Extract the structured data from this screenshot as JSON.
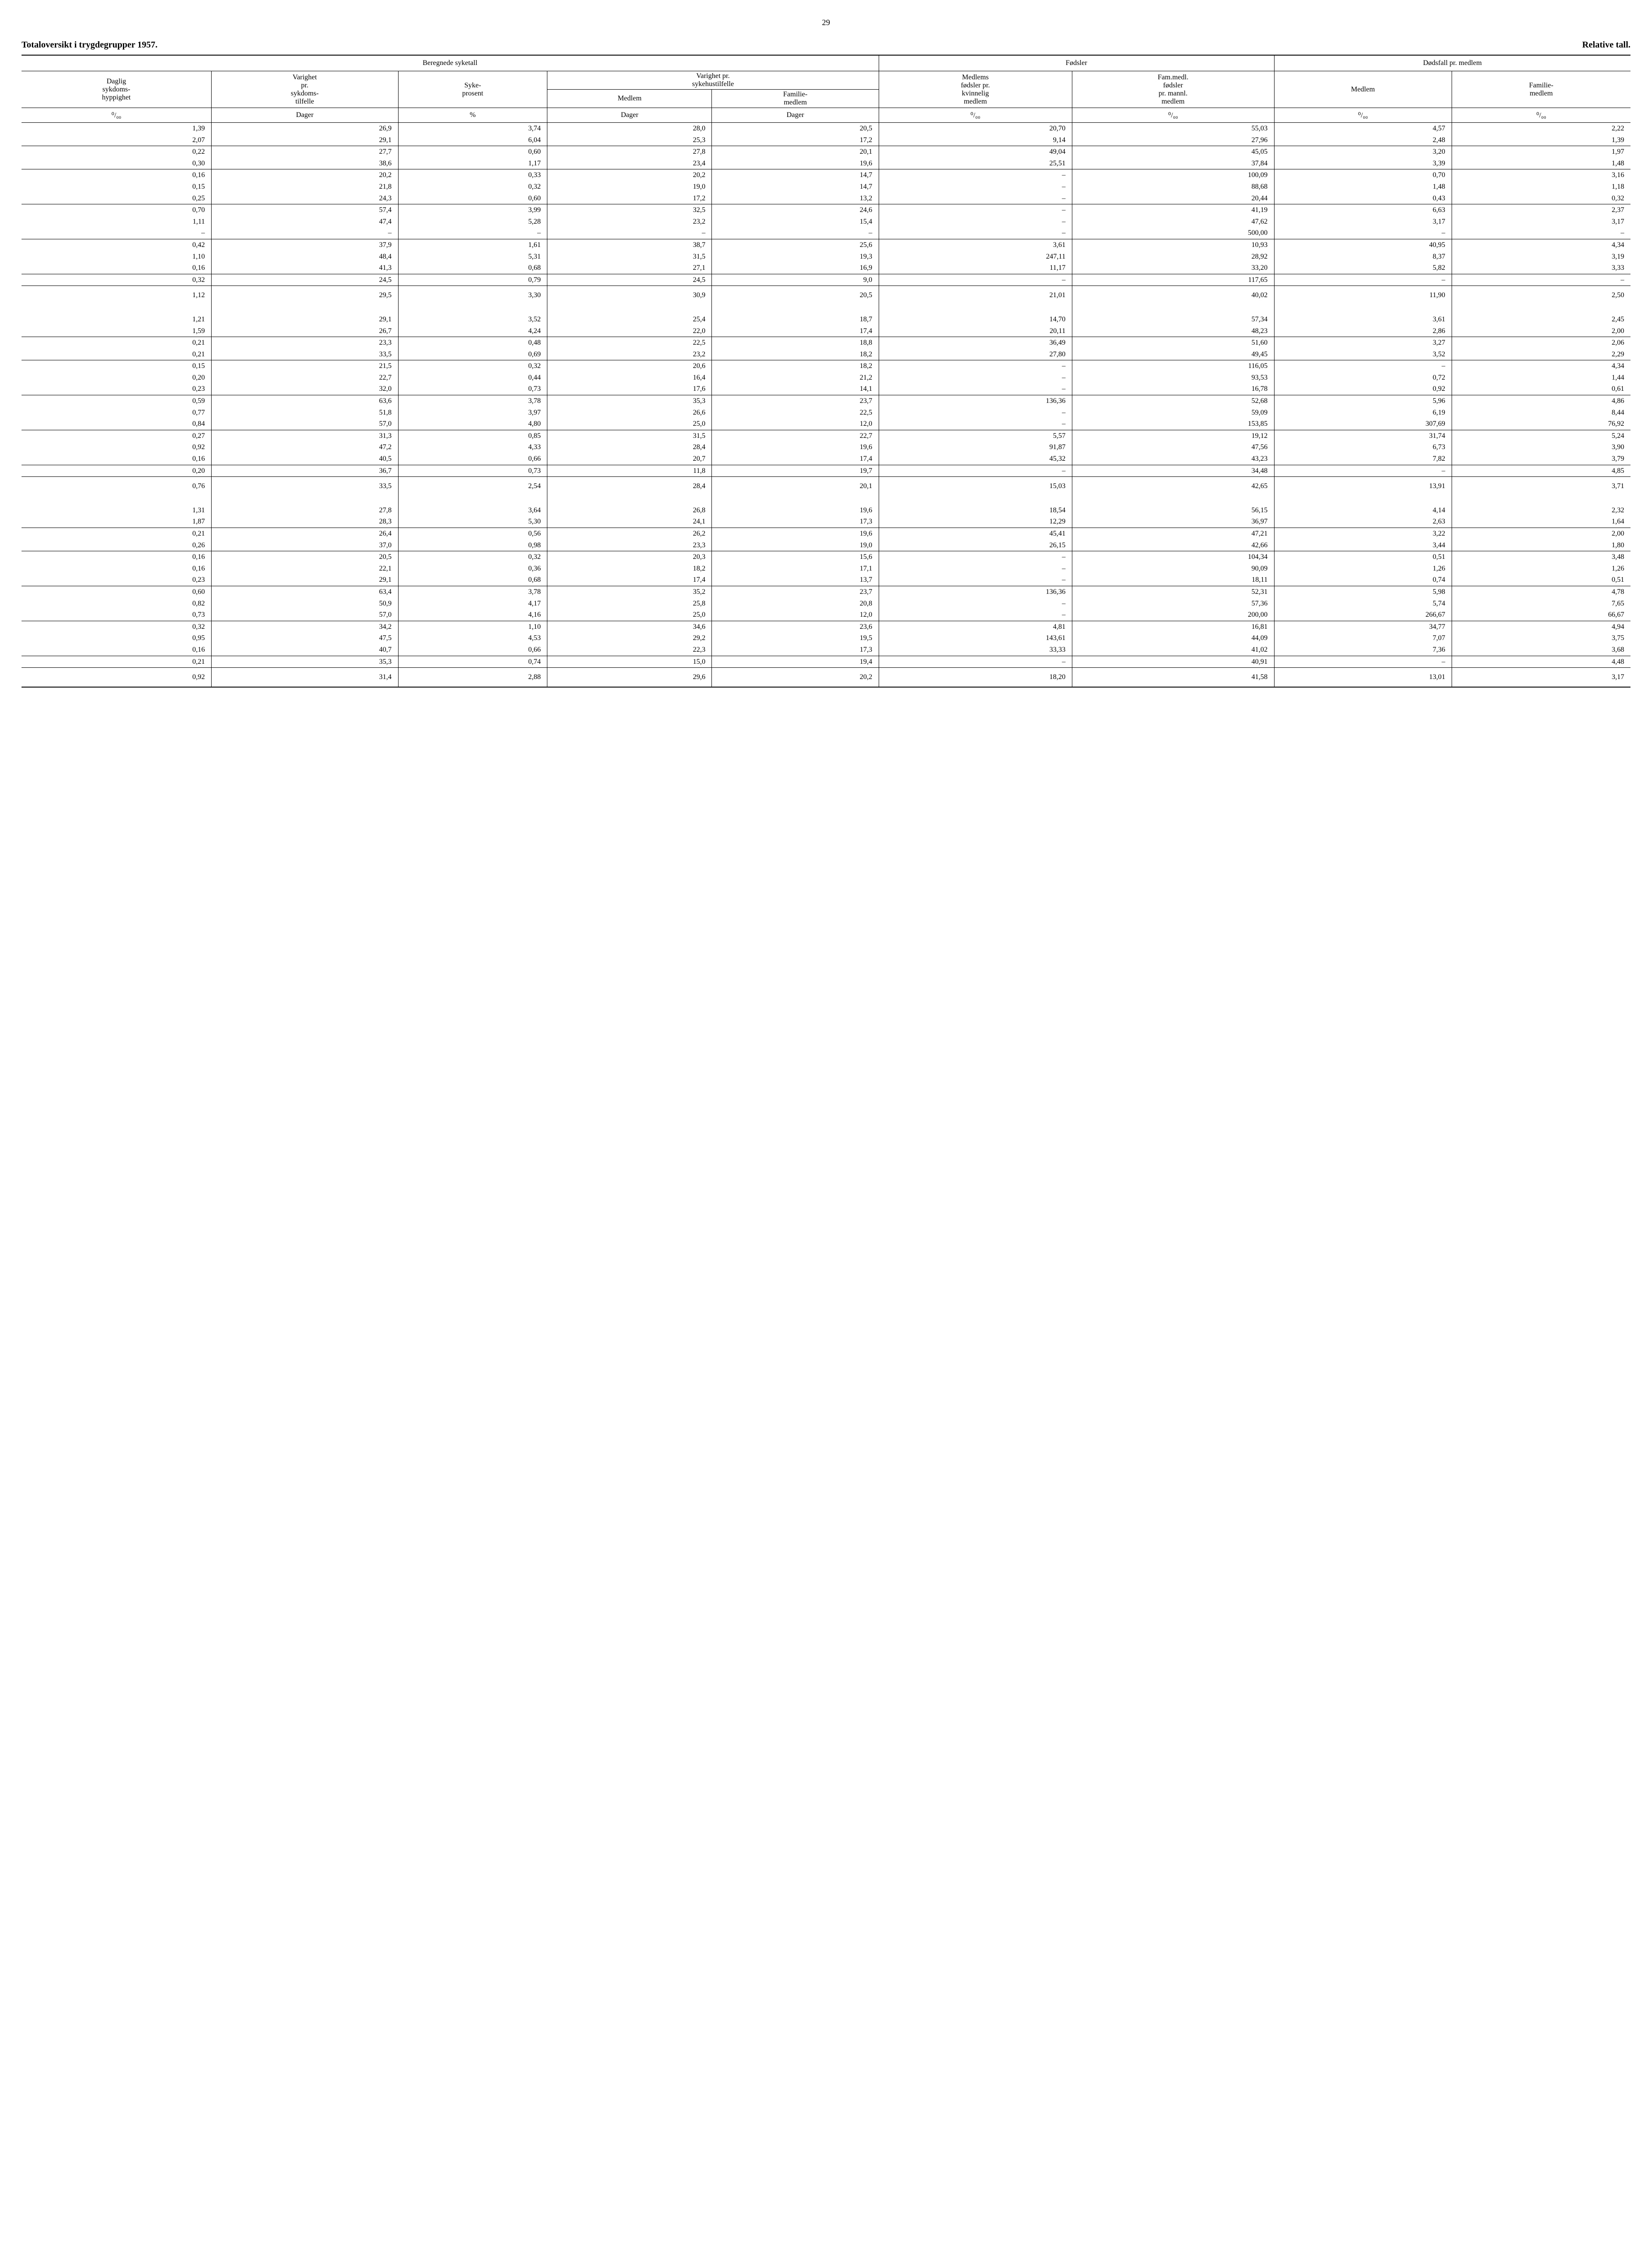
{
  "page_number": "29",
  "title_left": "Totaloversikt i trygdegrupper 1957.",
  "title_right": "Relative tall.",
  "headers": {
    "beregnede": "Beregnede syketall",
    "fodsler": "Fødsler",
    "dodsfall": "Dødsfall pr. medlem",
    "col1a": "Daglig",
    "col1b": "sykdoms-",
    "col1c": "hyppighet",
    "col2a": "Varighet",
    "col2b": "pr.",
    "col2c": "sykdoms-",
    "col2d": "tilfelle",
    "col3a": "Syke-",
    "col3b": "prosent",
    "col45a": "Varighet pr.",
    "col45b": "sykehustilfelle",
    "col4": "Medlem",
    "col5a": "Familie-",
    "col5b": "medlem",
    "col6a": "Medlems",
    "col6b": "fødsler pr.",
    "col6c": "kvinnelig",
    "col6d": "medlem",
    "col7a": "Fam.medl.",
    "col7b": "fødsler",
    "col7c": "pr. mannl.",
    "col7d": "medlem",
    "col8": "Medlem",
    "col9a": "Familie-",
    "col9b": "medlem",
    "u1": "⁰/₀₀",
    "u2": "Dager",
    "u3": "%",
    "u4": "Dager",
    "u5": "Dager",
    "u6": "⁰/₀₀",
    "u7": "⁰/₀₀",
    "u8": "⁰/₀₀",
    "u9": "⁰/₀₀"
  },
  "rows": [
    [
      "1,39",
      "26,9",
      "3,74",
      "28,0",
      "20,5",
      "20,70",
      "55,03",
      "4,57",
      "2,22"
    ],
    [
      "2,07",
      "29,1",
      "6,04",
      "25,3",
      "17,2",
      "9,14",
      "27,96",
      "2,48",
      "1,39"
    ],
    "sep",
    [
      "0,22",
      "27,7",
      "0,60",
      "27,8",
      "20,1",
      "49,04",
      "45,05",
      "3,20",
      "1,97"
    ],
    [
      "0,30",
      "38,6",
      "1,17",
      "23,4",
      "19,6",
      "25,51",
      "37,84",
      "3,39",
      "1,48"
    ],
    "sep",
    [
      "0,16",
      "20,2",
      "0,33",
      "20,2",
      "14,7",
      "–",
      "100,09",
      "0,70",
      "3,16"
    ],
    [
      "0,15",
      "21,8",
      "0,32",
      "19,0",
      "14,7",
      "–",
      "88,68",
      "1,48",
      "1,18"
    ],
    [
      "0,25",
      "24,3",
      "0,60",
      "17,2",
      "13,2",
      "–",
      "20,44",
      "0,43",
      "0,32"
    ],
    "sep",
    [
      "0,70",
      "57,4",
      "3,99",
      "32,5",
      "24,6",
      "–",
      "41,19",
      "6,63",
      "2,37"
    ],
    [
      "1,11",
      "47,4",
      "5,28",
      "23,2",
      "15,4",
      "–",
      "47,62",
      "3,17",
      "3,17"
    ],
    [
      "–",
      "–",
      "–",
      "–",
      "–",
      "–",
      "500,00",
      "–",
      "–"
    ],
    "sep",
    [
      "0,42",
      "37,9",
      "1,61",
      "38,7",
      "25,6",
      "3,61",
      "10,93",
      "40,95",
      "4,34"
    ],
    [
      "1,10",
      "48,4",
      "5,31",
      "31,5",
      "19,3",
      "247,11",
      "28,92",
      "8,37",
      "3,19"
    ],
    [
      "0,16",
      "41,3",
      "0,68",
      "27,1",
      "16,9",
      "11,17",
      "33,20",
      "5,82",
      "3,33"
    ],
    "sep",
    [
      "0,32",
      "24,5",
      "0,79",
      "24,5",
      "9,0",
      "–",
      "117,65",
      "–",
      "–"
    ],
    "sep",
    "gap",
    [
      "1,12",
      "29,5",
      "3,30",
      "30,9",
      "20,5",
      "21,01",
      "40,02",
      "11,90",
      "2,50"
    ],
    "biggap",
    [
      "1,21",
      "29,1",
      "3,52",
      "25,4",
      "18,7",
      "14,70",
      "57,34",
      "3,61",
      "2,45"
    ],
    [
      "1,59",
      "26,7",
      "4,24",
      "22,0",
      "17,4",
      "20,11",
      "48,23",
      "2,86",
      "2,00"
    ],
    "sep",
    [
      "0,21",
      "23,3",
      "0,48",
      "22,5",
      "18,8",
      "36,49",
      "51,60",
      "3,27",
      "2,06"
    ],
    [
      "0,21",
      "33,5",
      "0,69",
      "23,2",
      "18,2",
      "27,80",
      "49,45",
      "3,52",
      "2,29"
    ],
    "sep",
    [
      "0,15",
      "21,5",
      "0,32",
      "20,6",
      "18,2",
      "–",
      "116,05",
      "–",
      "4,34"
    ],
    [
      "0,20",
      "22,7",
      "0,44",
      "16,4",
      "21,2",
      "–",
      "93,53",
      "0,72",
      "1,44"
    ],
    [
      "0,23",
      "32,0",
      "0,73",
      "17,6",
      "14,1",
      "–",
      "16,78",
      "0,92",
      "0,61"
    ],
    "sep",
    [
      "0,59",
      "63,6",
      "3,78",
      "35,3",
      "23,7",
      "136,36",
      "52,68",
      "5,96",
      "4,86"
    ],
    [
      "0,77",
      "51,8",
      "3,97",
      "26,6",
      "22,5",
      "–",
      "59,09",
      "6,19",
      "8,44"
    ],
    [
      "0,84",
      "57,0",
      "4,80",
      "25,0",
      "12,0",
      "–",
      "153,85",
      "307,69",
      "76,92"
    ],
    "sep",
    [
      "0,27",
      "31,3",
      "0,85",
      "31,5",
      "22,7",
      "5,57",
      "19,12",
      "31,74",
      "5,24"
    ],
    [
      "0,92",
      "47,2",
      "4,33",
      "28,4",
      "19,6",
      "91,87",
      "47,56",
      "6,73",
      "3,90"
    ],
    [
      "0,16",
      "40,5",
      "0,66",
      "20,7",
      "17,4",
      "45,32",
      "43,23",
      "7,82",
      "3,79"
    ],
    "sep",
    [
      "0,20",
      "36,7",
      "0,73",
      "11,8",
      "19,7",
      "–",
      "34,48",
      "–",
      "4,85"
    ],
    "sep",
    "gap",
    [
      "0,76",
      "33,5",
      "2,54",
      "28,4",
      "20,1",
      "15,03",
      "42,65",
      "13,91",
      "3,71"
    ],
    "biggap",
    [
      "1,31",
      "27,8",
      "3,64",
      "26,8",
      "19,6",
      "18,54",
      "56,15",
      "4,14",
      "2,32"
    ],
    [
      "1,87",
      "28,3",
      "5,30",
      "24,1",
      "17,3",
      "12,29",
      "36,97",
      "2,63",
      "1,64"
    ],
    "sep",
    [
      "0,21",
      "26,4",
      "0,56",
      "26,2",
      "19,6",
      "45,41",
      "47,21",
      "3,22",
      "2,00"
    ],
    [
      "0,26",
      "37,0",
      "0,98",
      "23,3",
      "19,0",
      "26,15",
      "42,66",
      "3,44",
      "1,80"
    ],
    "sep",
    [
      "0,16",
      "20,5",
      "0,32",
      "20,3",
      "15,6",
      "–",
      "104,34",
      "0,51",
      "3,48"
    ],
    [
      "0,16",
      "22,1",
      "0,36",
      "18,2",
      "17,1",
      "–",
      "90,09",
      "1,26",
      "1,26"
    ],
    [
      "0,23",
      "29,1",
      "0,68",
      "17,4",
      "13,7",
      "–",
      "18,11",
      "0,74",
      "0,51"
    ],
    "sep",
    [
      "0,60",
      "63,4",
      "3,78",
      "35,2",
      "23,7",
      "136,36",
      "52,31",
      "5,98",
      "4,78"
    ],
    [
      "0,82",
      "50,9",
      "4,17",
      "25,8",
      "20,8",
      "–",
      "57,36",
      "5,74",
      "7,65"
    ],
    [
      "0,73",
      "57,0",
      "4,16",
      "25,0",
      "12,0",
      "–",
      "200,00",
      "266,67",
      "66,67"
    ],
    "sep",
    [
      "0,32",
      "34,2",
      "1,10",
      "34,6",
      "23,6",
      "4,81",
      "16,81",
      "34,77",
      "4,94"
    ],
    [
      "0,95",
      "47,5",
      "4,53",
      "29,2",
      "19,5",
      "143,61",
      "44,09",
      "7,07",
      "3,75"
    ],
    [
      "0,16",
      "40,7",
      "0,66",
      "22,3",
      "17,3",
      "33,33",
      "41,02",
      "7,36",
      "3,68"
    ],
    "sep",
    [
      "0,21",
      "35,3",
      "0,74",
      "15,0",
      "19,4",
      "–",
      "40,91",
      "–",
      "4,48"
    ],
    "sep",
    "gap",
    [
      "0,92",
      "31,4",
      "2,88",
      "29,6",
      "20,2",
      "18,20",
      "41,58",
      "13,01",
      "3,17"
    ]
  ]
}
